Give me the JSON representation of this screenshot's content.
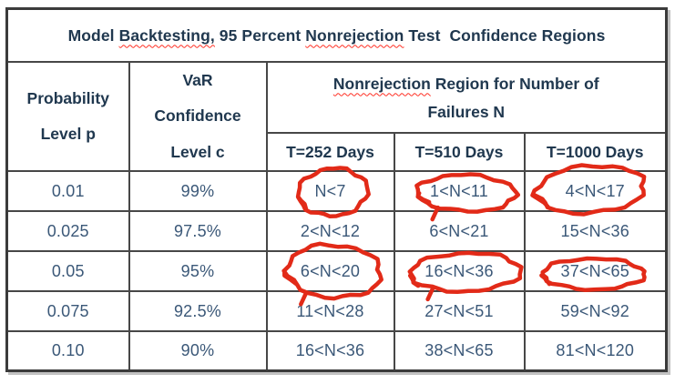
{
  "title_parts": [
    {
      "text": "Model ",
      "wavy": false
    },
    {
      "text": "Backtesting,",
      "wavy": true
    },
    {
      "text": " 95 Percent ",
      "wavy": false
    },
    {
      "text": "Nonrejection",
      "wavy": true
    },
    {
      "text": " Test  Confidence Regions",
      "wavy": false
    }
  ],
  "table": {
    "header": {
      "col1_lines": [
        "Probability",
        "Level p"
      ],
      "col2_lines": [
        "VaR",
        "Confidence",
        "Level c"
      ],
      "span_line1_parts": [
        {
          "text": "Nonrejection",
          "wavy": true
        },
        {
          "text": " Region for Number of",
          "wavy": false
        }
      ],
      "span_line2": "Failures N",
      "sub_headers": [
        "T=252 Days",
        "T=510 Days",
        "T=1000 Days"
      ]
    },
    "rows": [
      {
        "p": "0.01",
        "c": "99%",
        "cells": [
          {
            "text": "N<7",
            "circled": true
          },
          {
            "text": "1<N<11",
            "circled": true
          },
          {
            "text": "4<N<17",
            "circled": true
          }
        ]
      },
      {
        "p": "0.025",
        "c": "97.5%",
        "cells": [
          {
            "text": "2<N<12",
            "circled": false
          },
          {
            "text": "6<N<21",
            "circled": false
          },
          {
            "text": "15<N<36",
            "circled": false
          }
        ]
      },
      {
        "p": "0.05",
        "c": "95%",
        "cells": [
          {
            "text": "6<N<20",
            "circled": true
          },
          {
            "text": "16<N<36",
            "circled": true
          },
          {
            "text": "37<N<65",
            "circled": true
          }
        ]
      },
      {
        "p": "0.075",
        "c": "92.5%",
        "cells": [
          {
            "text": "11<N<28",
            "circled": false
          },
          {
            "text": "27<N<51",
            "circled": false
          },
          {
            "text": "59<N<92",
            "circled": false
          }
        ]
      },
      {
        "p": "0.10",
        "c": "90%",
        "cells": [
          {
            "text": "16<N<36",
            "circled": false
          },
          {
            "text": "38<N<65",
            "circled": false
          },
          {
            "text": "81<N<120",
            "circled": false
          }
        ]
      }
    ]
  },
  "colors": {
    "text_header": "#20384f",
    "text_data": "#3b5878",
    "border": "#474747",
    "annotation_red": "#e22a18",
    "spellcheck_squiggle": "#ff2f23",
    "shadow": "#c2c2c2"
  }
}
